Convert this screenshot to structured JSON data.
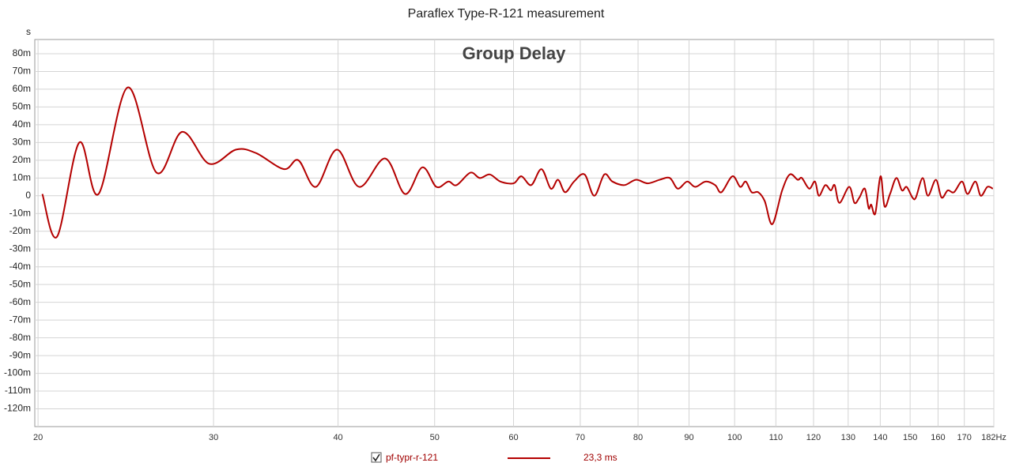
{
  "chart_data": {
    "type": "line",
    "title": "Paraflex Type-R-121 measurement",
    "subtitle": "Group Delay",
    "ylabel": "s",
    "log_x": true,
    "grid": true,
    "xlim": [
      19.85,
      182
    ],
    "ylim": [
      -130,
      88
    ],
    "xticks": [
      20,
      30,
      40,
      50,
      60,
      70,
      80,
      90,
      100,
      110,
      120,
      130,
      140,
      150,
      160,
      170,
      {
        "value": 182,
        "label": "182Hz"
      }
    ],
    "yticks": [
      {
        "value": 80,
        "label": "80m"
      },
      {
        "value": 70,
        "label": "70m"
      },
      {
        "value": 60,
        "label": "60m"
      },
      {
        "value": 50,
        "label": "50m"
      },
      {
        "value": 40,
        "label": "40m"
      },
      {
        "value": 30,
        "label": "30m"
      },
      {
        "value": 20,
        "label": "20m"
      },
      {
        "value": 10,
        "label": "10m"
      },
      0,
      {
        "value": -10,
        "label": "-10m"
      },
      {
        "value": -20,
        "label": "-20m"
      },
      {
        "value": -30,
        "label": "-30m"
      },
      {
        "value": -40,
        "label": "-40m"
      },
      {
        "value": -50,
        "label": "-50m"
      },
      {
        "value": -60,
        "label": "-60m"
      },
      {
        "value": -70,
        "label": "-70m"
      },
      {
        "value": -80,
        "label": "-80m"
      },
      {
        "value": -90,
        "label": "-90m"
      },
      {
        "value": -100,
        "label": "-100m"
      },
      {
        "value": -110,
        "label": "-110m"
      },
      {
        "value": -120,
        "label": "-120m"
      }
    ],
    "x": [
      20.2,
      20.9,
      22.0,
      23.0,
      24.6,
      26.3,
      27.9,
      29.7,
      31.6,
      33.1,
      35.3,
      36.5,
      38.0,
      39.9,
      42.0,
      44.6,
      46.7,
      48.6,
      50.2,
      51.6,
      52.6,
      54.3,
      55.5,
      56.8,
      58.2,
      60.0,
      61.1,
      62.5,
      64.0,
      65.4,
      66.5,
      67.6,
      69.0,
      70.7,
      72.3,
      74.0,
      75.4,
      77.5,
      79.6,
      81.8,
      84.1,
      86.1,
      87.7,
      89.6,
      91.3,
      93.5,
      95.6,
      97.0,
      99.5,
      101.3,
      102.6,
      104.0,
      105.6,
      107.2,
      109.1,
      111.6,
      113.6,
      115.7,
      116.8,
      118.8,
      120.4,
      121.5,
      123.3,
      124.9,
      126.0,
      127.4,
      130.3,
      131.9,
      133.4,
      135.1,
      136.3,
      137.1,
      138.4,
      140.1,
      141.4,
      143.2,
      145.3,
      147.2,
      148.8,
      150.8,
      152.0,
      154.4,
      156.3,
      159.2,
      161.3,
      163.6,
      166.0,
      169.1,
      171.3,
      174.4,
      176.6,
      179.3,
      181.6
    ],
    "series": [
      {
        "name": "pf-typr-r-121",
        "color": "#b40000",
        "legend_value": "23,3 ms",
        "values": [
          1,
          -23,
          30,
          1,
          61,
          13,
          36,
          18,
          26,
          24,
          15,
          20,
          5,
          26,
          5,
          21,
          1,
          16,
          5,
          8,
          6,
          13,
          10,
          12,
          8,
          7,
          11,
          6,
          15,
          4,
          9,
          2,
          8,
          12,
          0,
          12,
          8,
          6,
          9,
          7,
          9,
          10,
          4,
          8,
          5,
          8,
          6,
          2,
          11,
          5,
          8,
          2,
          2,
          -3,
          -16,
          3,
          12,
          9,
          10,
          4,
          8,
          0,
          6,
          3,
          6,
          -4,
          5,
          -4,
          -1,
          4,
          -7,
          -5,
          -10,
          11,
          -6,
          1,
          10,
          3,
          5,
          -1,
          -1,
          10,
          0,
          9,
          -1,
          3,
          2,
          8,
          1,
          8,
          0,
          5,
          4
        ]
      }
    ]
  }
}
